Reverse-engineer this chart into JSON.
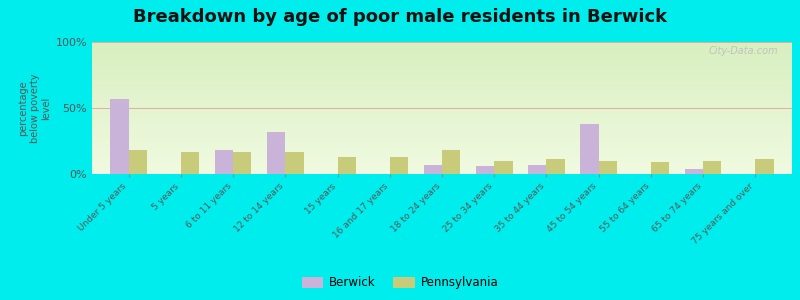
{
  "title": "Breakdown by age of poor male residents in Berwick",
  "ylabel": "percentage\nbelow poverty\nlevel",
  "categories": [
    "Under 5 years",
    "5 years",
    "6 to 11 years",
    "12 to 14 years",
    "15 years",
    "16 and 17 years",
    "18 to 24 years",
    "25 to 34 years",
    "35 to 44 years",
    "45 to 54 years",
    "55 to 64 years",
    "65 to 74 years",
    "75 years and over"
  ],
  "berwick_values": [
    57,
    0,
    18,
    32,
    0,
    0,
    7,
    6,
    7,
    38,
    0,
    4,
    0
  ],
  "pennsylvania_values": [
    18,
    17,
    17,
    17,
    13,
    13,
    18,
    10,
    11,
    10,
    9,
    10,
    11
  ],
  "berwick_color": "#c9b3d9",
  "pennsylvania_color": "#c8cc7a",
  "plot_bg_top": "#d8efc0",
  "plot_bg_bottom": "#f0fae0",
  "outer_bg_color": "#00eded",
  "ylim": [
    0,
    100
  ],
  "yticks": [
    0,
    50,
    100
  ],
  "ytick_labels": [
    "0%",
    "50%",
    "100%"
  ],
  "bar_width": 0.35,
  "title_fontsize": 13,
  "legend_labels": [
    "Berwick",
    "Pennsylvania"
  ]
}
